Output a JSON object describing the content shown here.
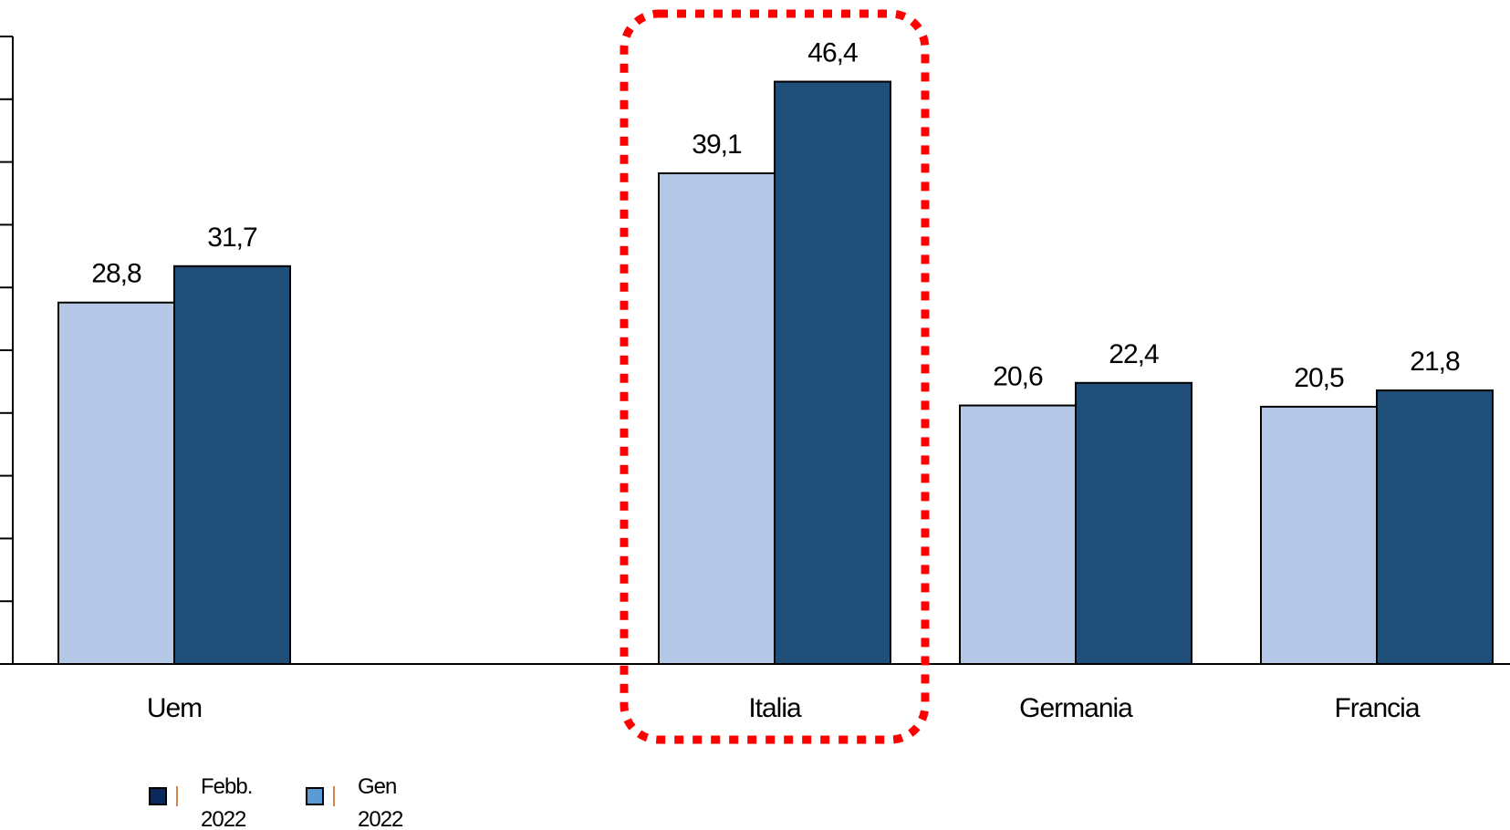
{
  "chart_data": {
    "type": "bar",
    "categories": [
      "Uem",
      "Italia",
      "Germania",
      "Francia"
    ],
    "series": [
      {
        "name": "Gen 2022",
        "legend_lines": [
          "Gen",
          "2022"
        ],
        "values": [
          28.8,
          39.1,
          20.6,
          20.5
        ],
        "labels": [
          "28,8",
          "39,1",
          "20,6",
          "20,5"
        ],
        "color": "#b4c7e7",
        "legend_swatch_color": "#5b9bd5"
      },
      {
        "name": "Febb. 2022",
        "legend_lines": [
          "Febb.",
          "2022"
        ],
        "values": [
          31.7,
          46.4,
          22.4,
          21.8
        ],
        "labels": [
          "31,7",
          "46,4",
          "22,4",
          "21,8"
        ],
        "color": "#1f4e79",
        "legend_swatch_color": "#0a2a5e"
      }
    ],
    "legend_order": [
      1,
      0
    ],
    "ylim": [
      0,
      50
    ],
    "y_tick_count": 10,
    "grid": false,
    "legend_position": "bottom-left",
    "highlight": {
      "category": "Italia",
      "style": "dotted",
      "color": "#ff0000"
    }
  }
}
